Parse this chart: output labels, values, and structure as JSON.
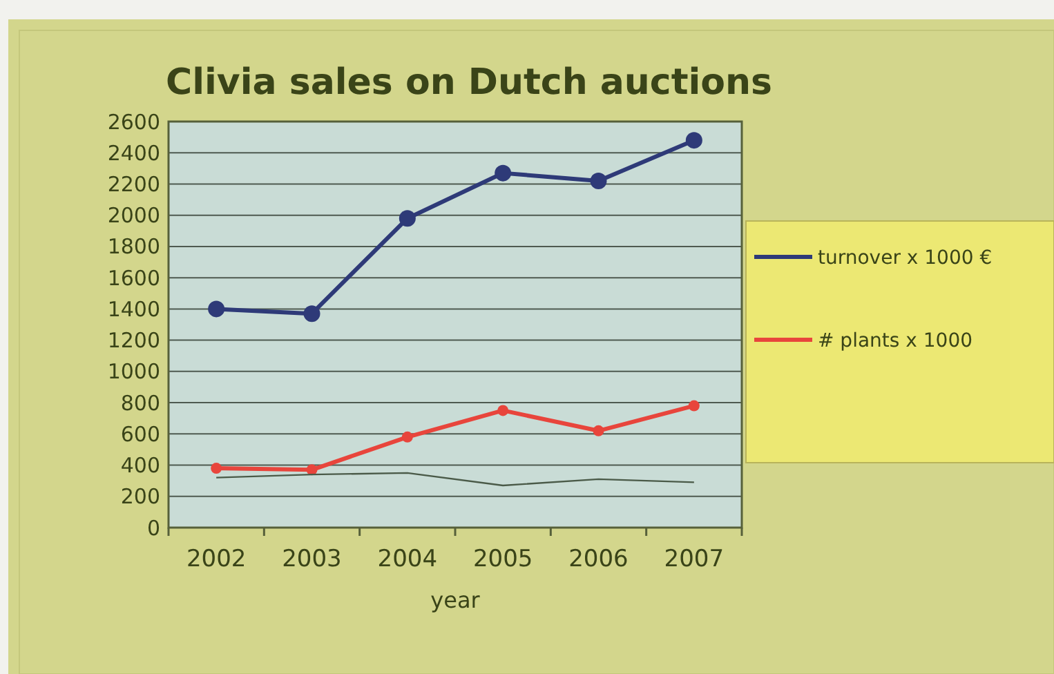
{
  "chart_data": {
    "type": "line",
    "title": "Clivia sales on Dutch auctions",
    "xlabel": "year",
    "categories": [
      "2002",
      "2003",
      "2004",
      "2005",
      "2006",
      "2007"
    ],
    "series": [
      {
        "name": "turnover x 1000 €",
        "color": "#2e3a78",
        "values": [
          1400,
          1370,
          1980,
          2270,
          2220,
          2480
        ],
        "marker": "circle"
      },
      {
        "name": "# plants x 1000",
        "color": "#e8453c",
        "values": [
          380,
          370,
          580,
          750,
          620,
          780
        ],
        "marker": "circle"
      },
      {
        "color": "#4a5a48",
        "values": [
          320,
          340,
          350,
          270,
          310,
          290
        ],
        "marker": "none"
      }
    ],
    "ylim": [
      0,
      2600
    ],
    "yticks": [
      0,
      200,
      400,
      600,
      800,
      1000,
      1200,
      1400,
      1600,
      1800,
      2000,
      2200,
      2400,
      2600
    ],
    "grid": "y",
    "legend": "right"
  }
}
